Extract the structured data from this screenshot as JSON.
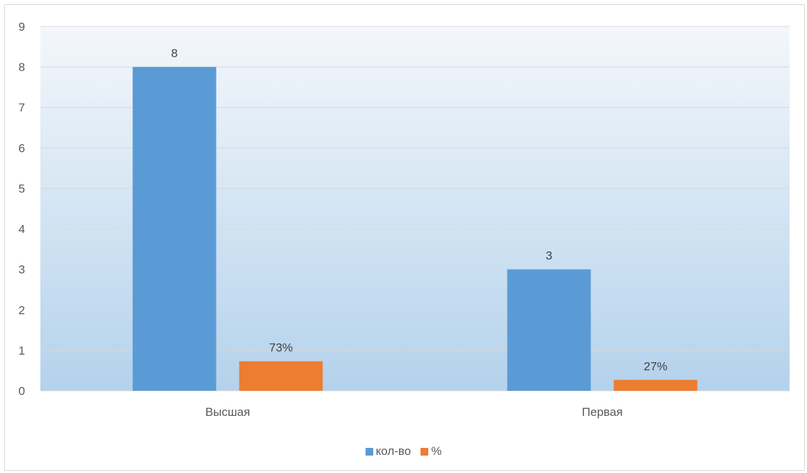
{
  "chart_data": {
    "type": "bar",
    "categories": [
      "Высшая",
      "Первая"
    ],
    "series": [
      {
        "name": "кол-во",
        "values": [
          8,
          3
        ],
        "color": "#5b9bd5",
        "labels": [
          "8",
          "3"
        ]
      },
      {
        "name": "%",
        "values": [
          0.73,
          0.27
        ],
        "color": "#ed7d31",
        "labels": [
          "73%",
          "27%"
        ]
      }
    ],
    "yticks": [
      "0",
      "1",
      "2",
      "3",
      "4",
      "5",
      "6",
      "7",
      "8",
      "9"
    ],
    "ylim": [
      0,
      9
    ],
    "grid": true,
    "legend": "bottom",
    "background_gradient": [
      "#f4f7fb",
      "#b4d2ec"
    ],
    "gridline_color": "#d9d9d9"
  }
}
